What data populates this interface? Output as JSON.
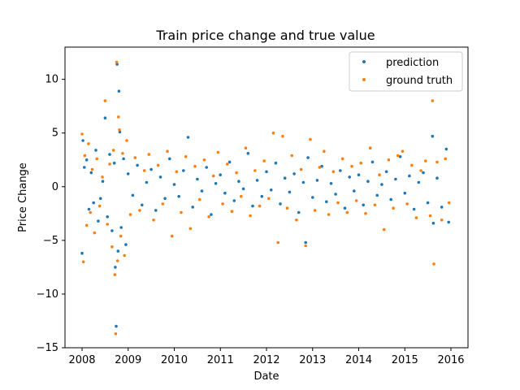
{
  "chart_data": {
    "type": "scatter",
    "title": "Train price change and true value",
    "xlabel": "Date",
    "ylabel": "Price Change",
    "xlim": [
      2007.63,
      2016.37
    ],
    "ylim": [
      -15,
      13
    ],
    "xticks": [
      2008,
      2009,
      2010,
      2011,
      2012,
      2013,
      2014,
      2015,
      2016
    ],
    "yticks": [
      -15,
      -10,
      -5,
      0,
      5,
      10
    ],
    "legend_position": "top-right",
    "grid": false,
    "series": [
      {
        "name": "prediction",
        "color": "#1f77b4",
        "x": [
          2008.0,
          2008.02,
          2008.05,
          2008.1,
          2008.15,
          2008.2,
          2008.25,
          2008.3,
          2008.35,
          2008.4,
          2008.45,
          2008.5,
          2008.55,
          2008.6,
          2008.65,
          2008.7,
          2008.72,
          2008.74,
          2008.76,
          2008.78,
          2008.8,
          2008.82,
          2008.85,
          2008.9,
          2008.95,
          2009.0,
          2009.1,
          2009.2,
          2009.3,
          2009.4,
          2009.5,
          2009.6,
          2009.7,
          2009.8,
          2009.9,
          2010.0,
          2010.1,
          2010.2,
          2010.3,
          2010.4,
          2010.5,
          2010.6,
          2010.7,
          2010.8,
          2010.9,
          2011.0,
          2011.1,
          2011.2,
          2011.3,
          2011.4,
          2011.5,
          2011.6,
          2011.7,
          2011.8,
          2011.9,
          2012.0,
          2012.1,
          2012.2,
          2012.3,
          2012.4,
          2012.5,
          2012.6,
          2012.7,
          2012.8,
          2012.85,
          2012.9,
          2013.0,
          2013.1,
          2013.2,
          2013.3,
          2013.4,
          2013.5,
          2013.6,
          2013.7,
          2013.8,
          2013.9,
          2014.0,
          2014.1,
          2014.2,
          2014.3,
          2014.4,
          2014.5,
          2014.6,
          2014.7,
          2014.8,
          2014.9,
          2015.0,
          2015.1,
          2015.2,
          2015.3,
          2015.4,
          2015.5,
          2015.6,
          2015.62,
          2015.7,
          2015.8,
          2015.9,
          2015.95
        ],
        "y": [
          -6.2,
          4.3,
          1.8,
          2.5,
          -2.1,
          1.3,
          -1.5,
          3.4,
          -3.2,
          -1.1,
          0.5,
          6.4,
          -2.8,
          3.0,
          -4.1,
          2.2,
          -7.5,
          -13.0,
          11.4,
          -6.0,
          8.9,
          5.1,
          -3.8,
          2.6,
          -5.4,
          1.2,
          -0.8,
          2.0,
          -1.7,
          0.4,
          1.6,
          -2.2,
          0.9,
          -1.1,
          2.6,
          0.2,
          -0.9,
          1.5,
          4.6,
          -1.9,
          0.7,
          -0.4,
          1.8,
          -2.6,
          0.3,
          1.1,
          -0.6,
          2.3,
          -1.3,
          0.5,
          -0.2,
          3.1,
          -1.8,
          0.6,
          -0.9,
          1.4,
          -0.3,
          2.2,
          -1.6,
          0.8,
          -0.5,
          1.2,
          -2.4,
          0.4,
          -5.2,
          2.7,
          -1.0,
          0.6,
          1.9,
          -1.4,
          0.3,
          -0.7,
          1.5,
          -2.0,
          0.9,
          -0.4,
          1.1,
          -1.7,
          0.5,
          2.3,
          -0.8,
          0.2,
          1.4,
          -1.2,
          0.7,
          2.8,
          -0.6,
          1.0,
          -2.1,
          0.4,
          1.3,
          -1.5,
          4.7,
          -3.4,
          0.8,
          -1.9,
          3.5,
          -3.3
        ]
      },
      {
        "name": "ground truth",
        "color": "#ff7f0e",
        "x": [
          2008.0,
          2008.03,
          2008.06,
          2008.1,
          2008.14,
          2008.18,
          2008.22,
          2008.27,
          2008.32,
          2008.38,
          2008.44,
          2008.5,
          2008.55,
          2008.6,
          2008.65,
          2008.68,
          2008.71,
          2008.73,
          2008.75,
          2008.77,
          2008.79,
          2008.81,
          2008.84,
          2008.88,
          2008.92,
          2008.97,
          2009.05,
          2009.15,
          2009.25,
          2009.35,
          2009.45,
          2009.55,
          2009.65,
          2009.75,
          2009.85,
          2009.95,
          2010.05,
          2010.15,
          2010.25,
          2010.35,
          2010.45,
          2010.55,
          2010.65,
          2010.75,
          2010.85,
          2010.95,
          2011.05,
          2011.15,
          2011.25,
          2011.35,
          2011.45,
          2011.55,
          2011.65,
          2011.75,
          2011.85,
          2011.95,
          2012.05,
          2012.15,
          2012.25,
          2012.35,
          2012.45,
          2012.55,
          2012.65,
          2012.75,
          2012.85,
          2012.95,
          2013.05,
          2013.15,
          2013.25,
          2013.35,
          2013.45,
          2013.55,
          2013.65,
          2013.75,
          2013.85,
          2013.95,
          2014.05,
          2014.15,
          2014.25,
          2014.35,
          2014.45,
          2014.55,
          2014.65,
          2014.75,
          2014.85,
          2014.95,
          2015.05,
          2015.15,
          2015.25,
          2015.35,
          2015.45,
          2015.55,
          2015.6,
          2015.63,
          2015.7,
          2015.8,
          2015.88,
          2015.96
        ],
        "y": [
          4.9,
          -7.0,
          2.9,
          -3.6,
          4.0,
          -2.4,
          1.6,
          -4.3,
          2.6,
          -1.8,
          0.9,
          8.0,
          -3.5,
          2.1,
          -5.6,
          3.4,
          -8.2,
          -13.7,
          11.6,
          -6.9,
          6.5,
          5.3,
          -4.6,
          3.1,
          -6.4,
          4.3,
          -2.6,
          2.7,
          -2.2,
          1.5,
          3.0,
          -3.1,
          2.0,
          -1.6,
          3.3,
          -4.6,
          1.4,
          -2.4,
          2.8,
          -3.9,
          1.9,
          -1.2,
          2.5,
          -2.8,
          1.0,
          3.2,
          -1.6,
          2.1,
          -2.3,
          1.3,
          -0.9,
          3.6,
          -2.7,
          1.5,
          -1.8,
          2.4,
          -1.1,
          5.0,
          -5.2,
          4.7,
          -2.0,
          2.9,
          -3.1,
          1.6,
          -5.5,
          4.4,
          -2.2,
          1.8,
          3.3,
          -2.6,
          1.4,
          -1.5,
          2.6,
          -2.4,
          1.9,
          -1.3,
          2.2,
          -2.5,
          3.6,
          -1.7,
          1.1,
          -4.0,
          2.5,
          -2.0,
          2.9,
          3.3,
          -1.6,
          2.0,
          -2.9,
          1.5,
          2.4,
          -2.7,
          8.0,
          -7.2,
          2.3,
          -3.1,
          2.6,
          -1.5
        ]
      }
    ]
  }
}
